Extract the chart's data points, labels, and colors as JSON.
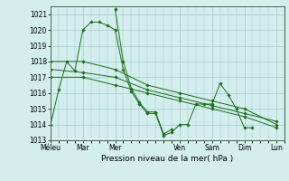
{
  "title": "",
  "xlabel": "Pression niveau de la mer( hPa )",
  "ylabel": "",
  "bg_color": "#d4eded",
  "grid_color": "#a0cccc",
  "line_color": "#1a6e1a",
  "ylim": [
    1013,
    1021.5
  ],
  "yticks": [
    1013,
    1014,
    1015,
    1016,
    1017,
    1018,
    1019,
    1020,
    1021
  ],
  "day_labels": [
    "Méleu",
    "Mar",
    "Mer",
    "Ven",
    "Sam",
    "Dim",
    "Lun"
  ],
  "day_positions": [
    0,
    24,
    48,
    96,
    120,
    144,
    168
  ],
  "xlim": [
    0,
    174
  ],
  "series": [
    [
      0,
      1014.0,
      6,
      1016.2,
      12,
      1018.0,
      18,
      1017.4,
      24,
      1020.0,
      30,
      1020.5,
      36,
      1020.5,
      42,
      1020.3,
      48,
      1020.0,
      54,
      1017.5,
      60,
      1016.1,
      66,
      1015.3,
      72,
      1014.7,
      78,
      1014.7,
      84,
      1013.3,
      90,
      1013.5,
      96,
      1014.0,
      102,
      1014.0,
      108,
      1015.3,
      114,
      1015.3,
      120,
      1015.3,
      126,
      1016.6,
      132,
      1015.9,
      138,
      1015.0,
      144,
      1013.8,
      150,
      1013.8
    ],
    [
      0,
      1018.0,
      24,
      1018.0,
      48,
      1017.5,
      72,
      1016.5,
      96,
      1016.0,
      120,
      1015.5,
      144,
      1015.0,
      168,
      1014.0
    ],
    [
      0,
      1017.5,
      24,
      1017.3,
      48,
      1017.0,
      72,
      1016.2,
      96,
      1015.7,
      120,
      1015.2,
      144,
      1014.7,
      168,
      1014.2
    ],
    [
      0,
      1017.0,
      24,
      1017.0,
      48,
      1016.5,
      72,
      1016.0,
      96,
      1015.5,
      120,
      1015.0,
      144,
      1014.5,
      168,
      1013.8
    ],
    [
      48,
      1021.3,
      54,
      1018.0,
      60,
      1016.3,
      66,
      1015.4,
      72,
      1014.8,
      78,
      1014.8,
      84,
      1013.4,
      90,
      1013.7
    ]
  ]
}
